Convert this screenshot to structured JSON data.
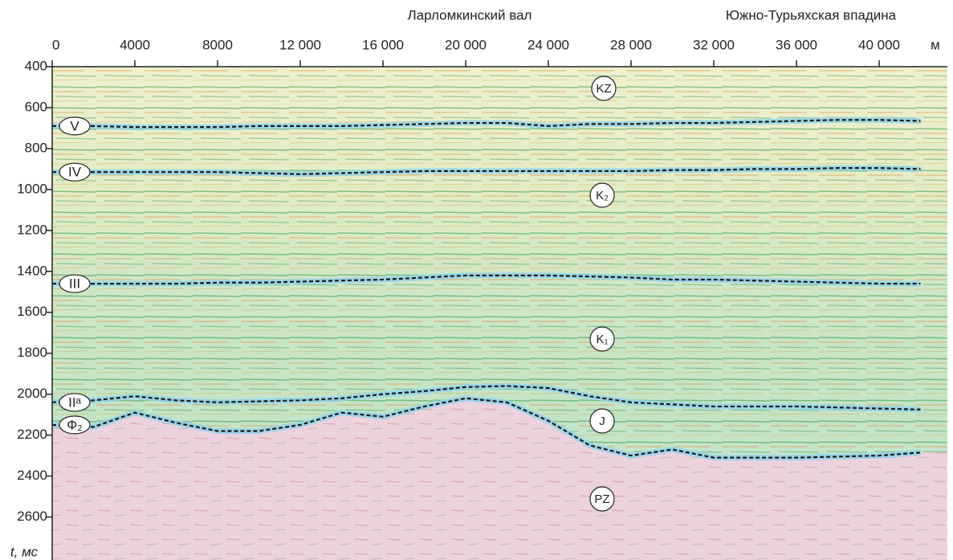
{
  "chart_data": {
    "type": "line",
    "regions": [
      "Ларломкинский вал",
      "Южно-Турьяхская впадина"
    ],
    "x_label": "м",
    "y_label": "t, мс",
    "y_inverted": true,
    "xlim": [
      0,
      43300
    ],
    "ylim": [
      400,
      2810
    ],
    "xticks": [
      0,
      4000,
      8000,
      {
        "value": 12000,
        "label": "12 000"
      },
      {
        "value": 16000,
        "label": "16 000"
      },
      {
        "value": 20000,
        "label": "20 000"
      },
      {
        "value": 24000,
        "label": "24 000"
      },
      {
        "value": 28000,
        "label": "28 000"
      },
      {
        "value": 32000,
        "label": "32 000"
      },
      {
        "value": 36000,
        "label": "36 000"
      },
      {
        "value": 40000,
        "label": "40 000"
      }
    ],
    "yticks": [
      400,
      600,
      800,
      1000,
      1200,
      1400,
      1600,
      1800,
      2000,
      2200,
      2400,
      2600
    ],
    "x": [
      0,
      2000,
      4000,
      6000,
      8000,
      10000,
      12000,
      14000,
      16000,
      18000,
      20000,
      22000,
      24000,
      26000,
      28000,
      30000,
      32000,
      34000,
      36000,
      38000,
      40000,
      42000
    ],
    "series": [
      {
        "name": "V",
        "color": "#1a1a1a",
        "values": [
          690,
          690,
          695,
          695,
          695,
          690,
          690,
          690,
          685,
          680,
          675,
          675,
          690,
          680,
          680,
          675,
          675,
          670,
          665,
          660,
          660,
          665
        ]
      },
      {
        "name": "IV",
        "color": "#1a1a1a",
        "values": [
          915,
          915,
          915,
          915,
          915,
          920,
          925,
          920,
          915,
          910,
          910,
          910,
          910,
          910,
          910,
          905,
          905,
          900,
          900,
          895,
          895,
          900
        ]
      },
      {
        "name": "III",
        "color": "#1a1a1a",
        "values": [
          1460,
          1460,
          1460,
          1460,
          1455,
          1455,
          1450,
          1445,
          1440,
          1430,
          1420,
          1420,
          1420,
          1425,
          1430,
          1440,
          1440,
          1445,
          1450,
          1455,
          1460,
          1460
        ]
      },
      {
        "name": "IIᵃ",
        "color": "#1a1a1a",
        "values": [
          2040,
          2030,
          2010,
          2030,
          2040,
          2035,
          2030,
          2020,
          2000,
          1985,
          1965,
          1960,
          1970,
          2010,
          2040,
          2050,
          2060,
          2060,
          2060,
          2065,
          2070,
          2075
        ]
      },
      {
        "name": "Ф₂",
        "color": "#1a1a1a",
        "values": [
          2150,
          2160,
          2090,
          2140,
          2180,
          2180,
          2150,
          2090,
          2110,
          2060,
          2020,
          2040,
          2130,
          2250,
          2300,
          2270,
          2310,
          2310,
          2310,
          2305,
          2300,
          2285
        ]
      }
    ],
    "annotations": [
      "KZ",
      "K₂",
      "K₁",
      "J",
      "PZ"
    ]
  }
}
